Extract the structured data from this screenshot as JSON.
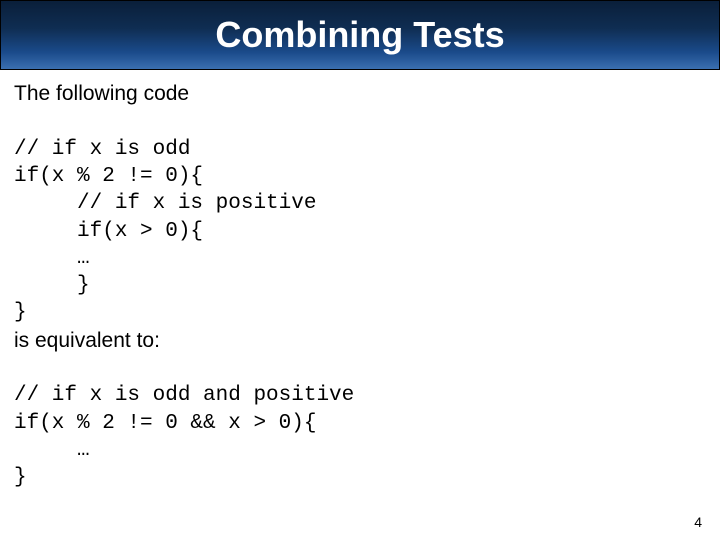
{
  "title": "Combining Tests",
  "intro": "The following code",
  "code1": {
    "l1": "// if x is odd",
    "l2": "if(x % 2 != 0){",
    "l3": "     // if x is positive",
    "l4": "     if(x > 0){",
    "l5": "     …",
    "l6": "     }",
    "l7": "}"
  },
  "mid": "is equivalent to:",
  "code2": {
    "l1": "// if x is odd and positive",
    "l2": "if(x % 2 != 0 && x > 0){",
    "l3": "     …",
    "l4": "}"
  },
  "pageNumber": "4",
  "colors": {
    "titleBg": "#0f2d52",
    "titleText": "#ffffff",
    "bodyText": "#000000",
    "slideBg": "#ffffff"
  },
  "fonts": {
    "title": "Verdana",
    "body": "Verdana",
    "code": "Courier New"
  }
}
